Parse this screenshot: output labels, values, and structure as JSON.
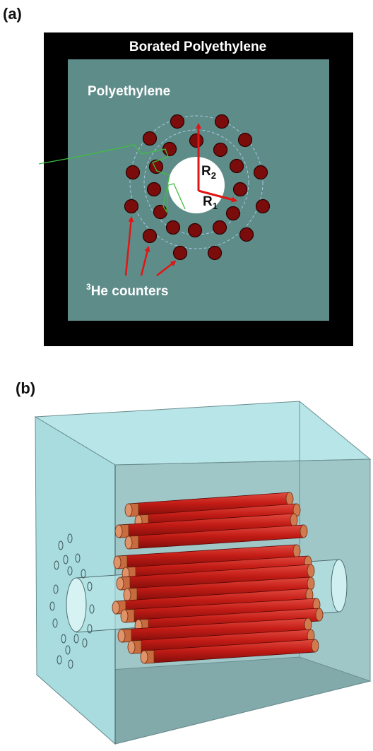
{
  "panel_a": {
    "label": "(a)",
    "outer_label": "Borated Polyethylene",
    "inner_label": "Polyethylene",
    "r2_label": "R",
    "r2_sub": "2",
    "r1_label": "R",
    "r1_sub": "1",
    "counter_sup": "3",
    "counter_label": "He counters"
  },
  "panel_b": {
    "label": "(b)"
  },
  "colors": {
    "outer_shield": "#000000",
    "polyethylene": "#5e8c89",
    "counter_fill": "#7a0c0c",
    "arrow": "#e01515",
    "trace": "#3fbf3f",
    "box_face": "#a9dcdf",
    "tube_red": "#c0201a",
    "tube_cap": "#d27a4f"
  }
}
